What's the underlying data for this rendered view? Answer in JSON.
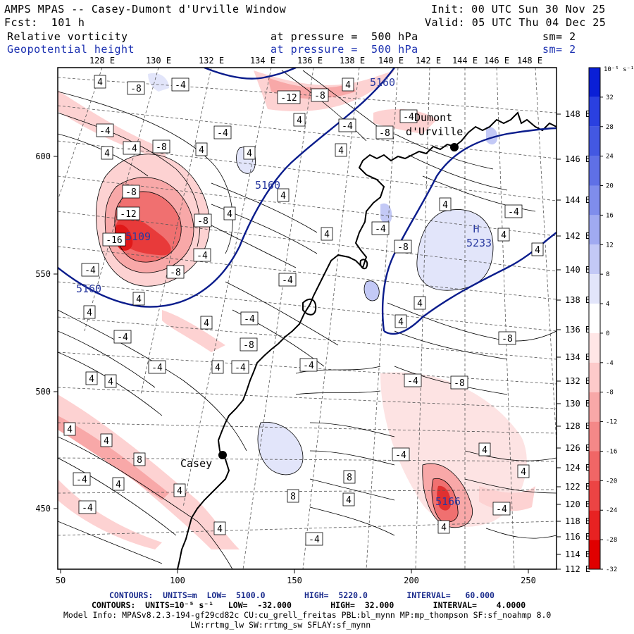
{
  "header": {
    "title": "AMPS MPAS -- Casey-Dumont d'Urville Window",
    "fcst": "Fcst:  101 h",
    "init": "Init: 00 UTC Sun 30 Nov 25",
    "valid": "Valid: 05 UTC Thu 04 Dec 25",
    "field1_name": "Relative vorticity",
    "field1_level": "at pressure =  500 hPa",
    "field1_sm": "sm= 2",
    "field2_name": "Geopotential height",
    "field2_level": "at pressure =  500 hPa",
    "field2_sm": "sm= 2"
  },
  "map": {
    "top_lon_labels": [
      "128 E",
      "130 E",
      "132 E",
      "134 E",
      "136 E",
      "138 E",
      "140 E",
      "142 E",
      "144 E",
      "146 E",
      "148 E"
    ],
    "right_lat_labels": [
      "148 E",
      "146 E",
      "144 E",
      "142 E",
      "140 E",
      "138 E",
      "136 E",
      "134 E",
      "132 E",
      "130 E",
      "128 E",
      "126 E",
      "124 E",
      "122 E",
      "120 E",
      "118 E",
      "116 E",
      "114 E",
      "112 E"
    ],
    "x_ticks": [
      "50",
      "100",
      "150",
      "200",
      "250"
    ],
    "y_ticks": [
      "600",
      "550",
      "500",
      "450"
    ],
    "stations": [
      {
        "name": "Dumont",
        "name2": "d'Urville"
      },
      {
        "name": "Casey"
      }
    ],
    "height_labels": [
      "5160",
      "5160",
      "5160",
      "5109",
      "5233",
      "5166"
    ],
    "high_marker": "H",
    "vort_labels": [
      "4",
      "-8",
      "-4",
      "-12",
      "-8",
      "4",
      "-4",
      "4",
      "-4",
      "-8",
      "-4",
      "-4",
      "-8",
      "4",
      "4",
      "-4",
      "4",
      "4",
      "-8",
      "-12",
      "-8",
      "4",
      "-16",
      "-4",
      "-4",
      "-8",
      "4",
      "4",
      "-4",
      "-8",
      "4",
      "-4",
      "4",
      "4",
      "4",
      "4",
      "4",
      "-4",
      "-4",
      "4",
      "4",
      "-8",
      "-4",
      "-8",
      "-4",
      "4",
      "-4",
      "-4",
      "4",
      "4",
      "-4",
      "-8",
      "-4",
      "4",
      "4",
      "8",
      "4",
      "-4",
      "4",
      "8",
      "-4",
      "4",
      "-4",
      "8",
      "4",
      "4",
      "4",
      "-4",
      "4"
    ],
    "colors": {
      "map_border": "#000000",
      "coast": "#000000",
      "height_contour": "#0a1c8c",
      "vort_contour": "#000000"
    }
  },
  "legend": {
    "unit": "10⁻⁵ s⁻¹",
    "labels": [
      "32",
      "28",
      "24",
      "20",
      "16",
      "12",
      "8",
      "4",
      "0",
      "-4",
      "-8",
      "-12",
      "-16",
      "-20",
      "-24",
      "-28",
      "-32"
    ],
    "colors": [
      "#0a1fd6",
      "#2a40e0",
      "#4358e2",
      "#5f70e6",
      "#7f8dec",
      "#a0aaf1",
      "#c3c9f6",
      "#e2e5fa",
      "#ffffff",
      "#ffe6e6",
      "#fdcaca",
      "#f8a8a8",
      "#f48888",
      "#f06666",
      "#ec4444",
      "#e82222",
      "#e00000"
    ]
  },
  "footer": {
    "line1": "CONTOURS:  UNITS=m  LOW=  5100.0        HIGH=  5220.0        INTERVAL=   60.000",
    "line2": "CONTOURS:  UNITS=10⁻⁵ s⁻¹   LOW=  -32.000        HIGH=  32.000        INTERVAL=    4.0000",
    "line3": "Model Info: MPASv8.2.3-194-gf29cd82c CU:cu_grell_freitas PBL:bl_mynn MP:mp_thompson SF:sf_noahmp 8.0",
    "line4": "LW:rrtmg_lw SW:rrtmg_sw SFLAY:sf_mynn"
  }
}
